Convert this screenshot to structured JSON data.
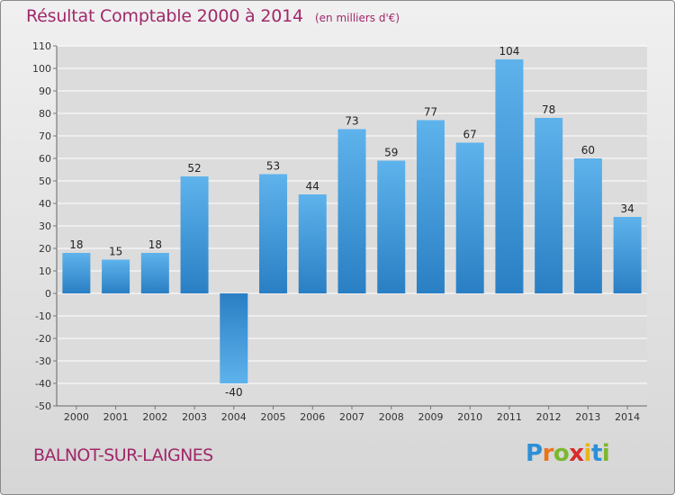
{
  "chart_data": {
    "type": "bar",
    "title": "Résultat Comptable 2000 à 2014",
    "subtitle": "(en milliers d'€)",
    "categories": [
      "2000",
      "2001",
      "2002",
      "2003",
      "2004",
      "2005",
      "2006",
      "2007",
      "2008",
      "2009",
      "2010",
      "2011",
      "2012",
      "2013",
      "2014"
    ],
    "values": [
      18,
      15,
      18,
      52,
      -40,
      53,
      44,
      73,
      59,
      77,
      67,
      104,
      78,
      60,
      34
    ],
    "ylim": [
      -50,
      110
    ],
    "yticks": [
      110,
      100,
      90,
      80,
      70,
      60,
      50,
      40,
      30,
      20,
      10,
      0,
      -10,
      -20,
      -30,
      -40,
      -50
    ],
    "xlabel": "",
    "ylabel": "",
    "grid": true,
    "bar_color": "#3a8fd4"
  },
  "location": "BALNOT-SUR-LAIGNES",
  "brand": {
    "letters": [
      "P",
      "r",
      "o",
      "x",
      "i",
      "t",
      "i"
    ],
    "colors": [
      "#2e8fd6",
      "#e8751c",
      "#7cb82f",
      "#d92b2b",
      "#e8b51c",
      "#2e8fd6",
      "#7cb82f"
    ]
  }
}
